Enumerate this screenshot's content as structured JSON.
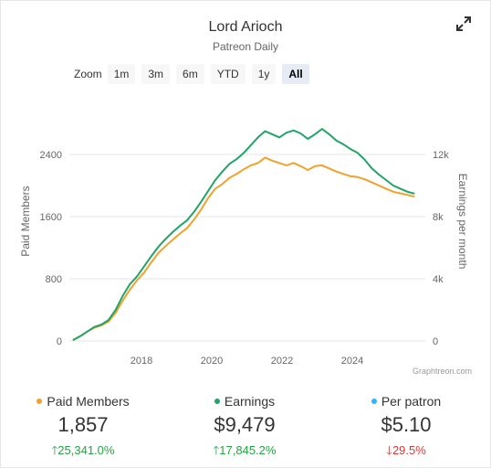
{
  "header": {
    "title": "Lord Arioch",
    "subtitle": "Patreon Daily",
    "expand_icon": "expand-icon"
  },
  "zoom": {
    "label": "Zoom",
    "options": [
      "1m",
      "3m",
      "6m",
      "YTD",
      "1y",
      "All"
    ],
    "selected": "All"
  },
  "credit": "Graphtreon.com",
  "colors": {
    "members": "#f0a22c",
    "earnings": "#1fa567",
    "per_patron": "#29b6f6",
    "grid": "#e6e6e6",
    "up": "#27a243",
    "down": "#d43b3b"
  },
  "chart_data": {
    "type": "line",
    "x_ticks": [
      "2018",
      "2020",
      "2022",
      "2024"
    ],
    "y_left": {
      "label": "Paid Members",
      "ticks": [
        "0",
        "800",
        "1600",
        "2400"
      ],
      "range": [
        0,
        2400
      ]
    },
    "y_right": {
      "label": "Earnings per month",
      "ticks": [
        "0",
        "4k",
        "8k",
        "12k"
      ],
      "range": [
        0,
        12000
      ]
    },
    "grid": true,
    "series": [
      {
        "name": "Paid Members",
        "axis": "left",
        "x": [
          2016.1,
          2016.3,
          2016.5,
          2016.7,
          2016.9,
          2017.1,
          2017.3,
          2017.5,
          2017.7,
          2017.9,
          2018.1,
          2018.3,
          2018.5,
          2018.7,
          2018.9,
          2019.1,
          2019.3,
          2019.5,
          2019.7,
          2019.9,
          2020.1,
          2020.3,
          2020.5,
          2020.7,
          2020.9,
          2021.1,
          2021.3,
          2021.5,
          2021.7,
          2021.9,
          2022.1,
          2022.3,
          2022.5,
          2022.7,
          2022.9,
          2023.1,
          2023.3,
          2023.5,
          2023.7,
          2023.9,
          2024.1,
          2024.3,
          2024.5,
          2024.7,
          2024.9,
          2025.1,
          2025.3,
          2025.5,
          2025.7
        ],
        "values": [
          10,
          60,
          120,
          170,
          200,
          250,
          360,
          520,
          660,
          780,
          880,
          1010,
          1130,
          1220,
          1300,
          1380,
          1450,
          1560,
          1690,
          1840,
          1960,
          2020,
          2100,
          2150,
          2210,
          2260,
          2290,
          2360,
          2320,
          2290,
          2260,
          2290,
          2250,
          2200,
          2250,
          2260,
          2220,
          2180,
          2150,
          2120,
          2110,
          2080,
          2040,
          2000,
          1960,
          1920,
          1900,
          1880,
          1857
        ]
      },
      {
        "name": "Earnings",
        "axis": "right",
        "x": [
          2016.1,
          2016.3,
          2016.5,
          2016.7,
          2016.9,
          2017.1,
          2017.3,
          2017.5,
          2017.7,
          2017.9,
          2018.1,
          2018.3,
          2018.5,
          2018.7,
          2018.9,
          2019.1,
          2019.3,
          2019.5,
          2019.7,
          2019.9,
          2020.1,
          2020.3,
          2020.5,
          2020.7,
          2020.9,
          2021.1,
          2021.3,
          2021.5,
          2021.7,
          2021.9,
          2022.1,
          2022.3,
          2022.5,
          2022.7,
          2022.9,
          2023.1,
          2023.3,
          2023.5,
          2023.7,
          2023.9,
          2024.1,
          2024.3,
          2024.5,
          2024.7,
          2024.9,
          2025.1,
          2025.3,
          2025.5,
          2025.7
        ],
        "values": [
          50,
          300,
          600,
          900,
          1050,
          1350,
          2000,
          2900,
          3650,
          4150,
          4800,
          5450,
          6050,
          6550,
          7000,
          7400,
          7750,
          8300,
          8950,
          9650,
          10350,
          10900,
          11400,
          11700,
          12100,
          12600,
          13100,
          13500,
          13300,
          13100,
          13400,
          13550,
          13350,
          13000,
          13300,
          13650,
          13300,
          12900,
          12650,
          12350,
          12100,
          11650,
          11100,
          10700,
          10350,
          10000,
          9800,
          9600,
          9479
        ]
      }
    ]
  },
  "stats": [
    {
      "label": "Paid Members",
      "value": "1,857",
      "change": "25,341.0%",
      "direction": "up",
      "dot_color": "#f0a22c"
    },
    {
      "label": "Earnings",
      "value": "$9,479",
      "change": "17,845.2%",
      "direction": "up",
      "dot_color": "#1fa567"
    },
    {
      "label": "Per patron",
      "value": "$5.10",
      "change": "29.5%",
      "direction": "down",
      "dot_color": "#29b6f6"
    }
  ]
}
